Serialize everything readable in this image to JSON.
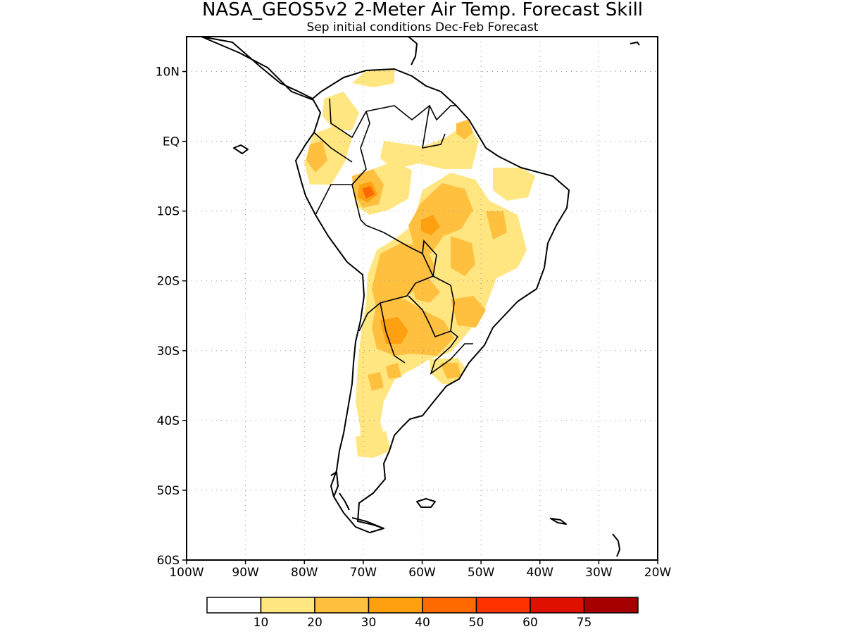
{
  "title": "NASA_GEOS5v2 2-Meter Air Temp. Forecast Skill",
  "subtitle": "Sep initial conditions  Dec-Feb Forecast",
  "map": {
    "lon_range": [
      -100,
      -20
    ],
    "lat_range": [
      -60,
      15
    ],
    "lat_ticks": [
      {
        "value": 10,
        "label": "10N"
      },
      {
        "value": 0,
        "label": "EQ"
      },
      {
        "value": -10,
        "label": "10S"
      },
      {
        "value": -20,
        "label": "20S"
      },
      {
        "value": -30,
        "label": "30S"
      },
      {
        "value": -40,
        "label": "40S"
      },
      {
        "value": -50,
        "label": "50S"
      },
      {
        "value": -60,
        "label": "60S"
      }
    ],
    "lon_ticks": [
      {
        "value": -100,
        "label": "100W"
      },
      {
        "value": -90,
        "label": "90W"
      },
      {
        "value": -80,
        "label": "80W"
      },
      {
        "value": -70,
        "label": "70W"
      },
      {
        "value": -60,
        "label": "60W"
      },
      {
        "value": -50,
        "label": "50W"
      },
      {
        "value": -40,
        "label": "40W"
      },
      {
        "value": -30,
        "label": "30W"
      },
      {
        "value": -20,
        "label": "20W"
      }
    ],
    "grid": "dotted"
  },
  "colorbar": {
    "bins": [
      {
        "color": "#ffffff"
      },
      {
        "color": "#ffe680"
      },
      {
        "color": "#ffc040"
      },
      {
        "color": "#ffa010"
      },
      {
        "color": "#ff6a00"
      },
      {
        "color": "#ff3300"
      },
      {
        "color": "#e01000"
      },
      {
        "color": "#a50000"
      }
    ],
    "labels": [
      "10",
      "20",
      "30",
      "40",
      "50",
      "60",
      "75"
    ]
  }
}
